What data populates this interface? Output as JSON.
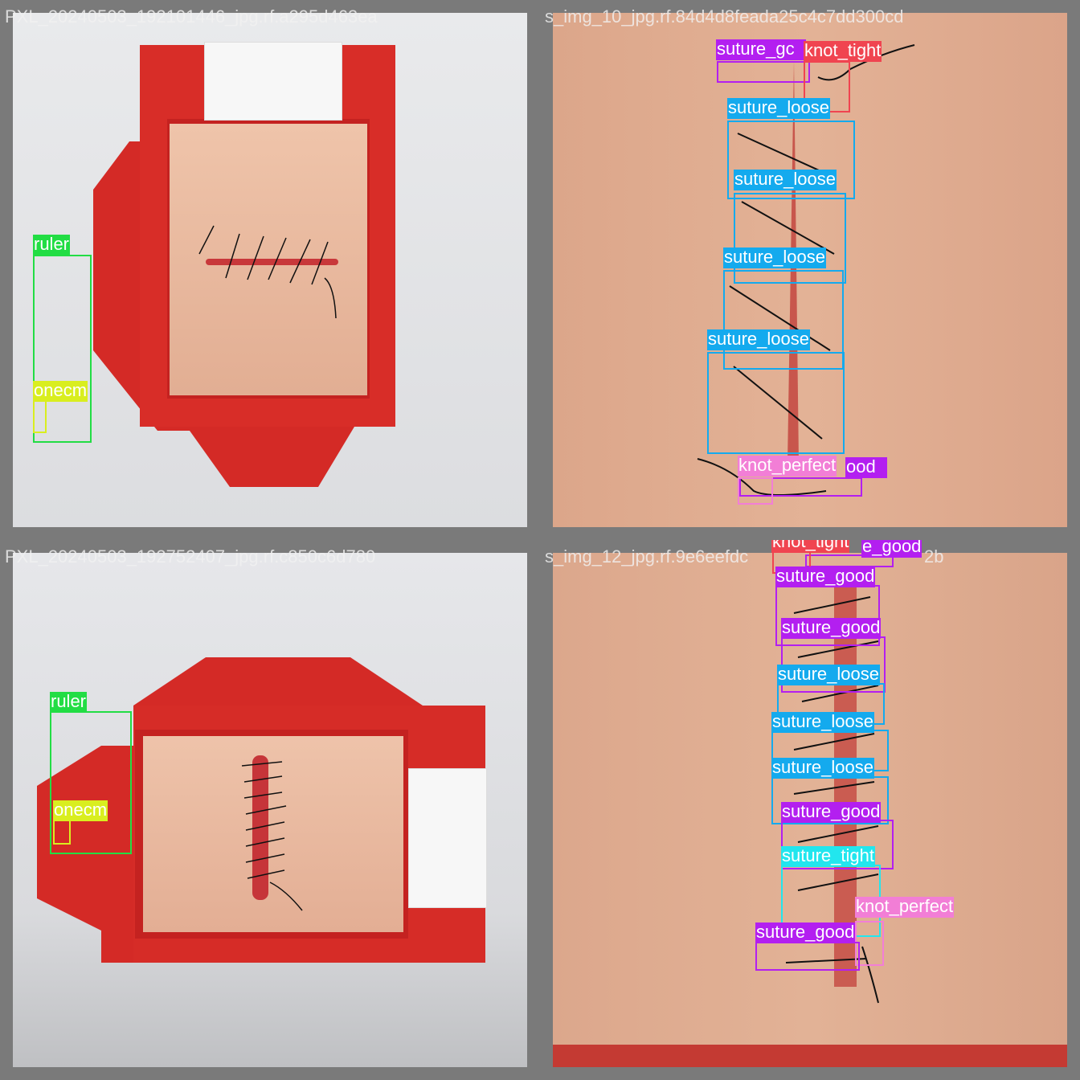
{
  "colors": {
    "ruler": "#22dd44",
    "onecm": "#d9ee1f",
    "suture_good": "#b31ff0",
    "suture_loose": "#14aaee",
    "suture_tight": "#22e6ee",
    "knot_tight": "#f04450",
    "knot_perfect": "#f27ed6"
  },
  "panels": [
    {
      "filename": "PXL_20240503_192101446_jpg.rf.a295d463ea",
      "labels": {
        "ruler": "ruler",
        "onecm": "onecm"
      }
    },
    {
      "filename": "s_img_10_jpg.rf.84d4d8feada25c4c7dd300cd",
      "labels": {
        "suture_good_top": "suture_gc",
        "knot_tight": "knot_tight",
        "loose_1": "suture_loose",
        "loose_2": "suture_loose",
        "loose_3": "suture_loose",
        "loose_4": "suture_loose",
        "knot_perfect": "knot_perfect",
        "suture_good_bottom": "ood"
      }
    },
    {
      "filename": "PXL_20240503_192752407_jpg.rf.c850c6d780",
      "labels": {
        "ruler": "ruler",
        "onecm": "onecm"
      }
    },
    {
      "filename": "s_img_12_jpg.rf.9e6eefdc",
      "filename_tail": "2b",
      "labels": {
        "knot_tight": "knot_tight",
        "good_top_right": "e_good",
        "good_1": "suture_good",
        "good_2": "suture_good",
        "loose_1": "suture_loose",
        "loose_2": "suture_loose",
        "loose_3": "suture_loose",
        "good_3": "suture_good",
        "tight_1": "suture_tight",
        "knot_perfect": "knot_perfect",
        "good_4": "suture_good"
      }
    }
  ]
}
